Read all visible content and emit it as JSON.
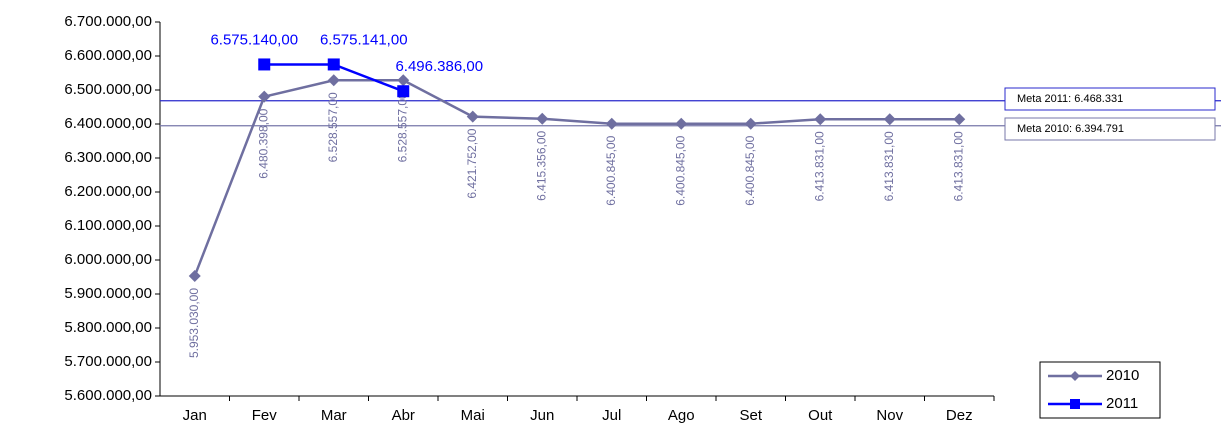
{
  "chart_data": {
    "type": "line",
    "categories": [
      "Jan",
      "Fev",
      "Mar",
      "Abr",
      "Mai",
      "Jun",
      "Jul",
      "Ago",
      "Set",
      "Out",
      "Nov",
      "Dez"
    ],
    "series": [
      {
        "name": "2010",
        "color": "#6f6fa0",
        "values": [
          5953030,
          6480398,
          6528557,
          6528557,
          6421752,
          6415356,
          6400845,
          6400845,
          6400845,
          6413831,
          6413831,
          6413831
        ],
        "value_labels": [
          "5.953.030,00",
          "6.480.398,00",
          "6.528.557,00",
          "6.528.557,00",
          "6.421.752,00",
          "6.415.356,00",
          "6.400.845,00",
          "6.400.845,00",
          "6.400.845,00",
          "6.413.831,00",
          "6.413.831,00",
          "6.413.831,00"
        ]
      },
      {
        "name": "2011",
        "color": "#0000ff",
        "values": [
          null,
          6575140,
          6575141,
          6496386,
          null,
          null,
          null,
          null,
          null,
          null,
          null,
          null
        ],
        "value_labels": [
          null,
          "6.575.140,00",
          "6.575.141,00",
          "6.496.386,00",
          null,
          null,
          null,
          null,
          null,
          null,
          null,
          null
        ]
      }
    ],
    "reference_lines": [
      {
        "label": "Meta 2011: 6.468.331",
        "value": 6468331,
        "color": "#2a2acc"
      },
      {
        "label": "Meta 2010: 6.394.791",
        "value": 6394791,
        "color": "#7777aa"
      }
    ],
    "ylim": [
      5600000,
      6700000
    ],
    "yticks": [
      {
        "value": 5600000,
        "label": "5.600.000,00"
      },
      {
        "value": 5700000,
        "label": "5.700.000,00"
      },
      {
        "value": 5800000,
        "label": "5.800.000,00"
      },
      {
        "value": 5900000,
        "label": "5.900.000,00"
      },
      {
        "value": 6000000,
        "label": "6.000.000,00"
      },
      {
        "value": 6100000,
        "label": "6.100.000,00"
      },
      {
        "value": 6200000,
        "label": "6.200.000,00"
      },
      {
        "value": 6300000,
        "label": "6.300.000,00"
      },
      {
        "value": 6400000,
        "label": "6.400.000,00"
      },
      {
        "value": 6500000,
        "label": "6.500.000,00"
      },
      {
        "value": 6600000,
        "label": "6.600.000,00"
      },
      {
        "value": 6700000,
        "label": "6.700.000,00"
      }
    ],
    "grid": false,
    "legend": "bottom-right"
  }
}
